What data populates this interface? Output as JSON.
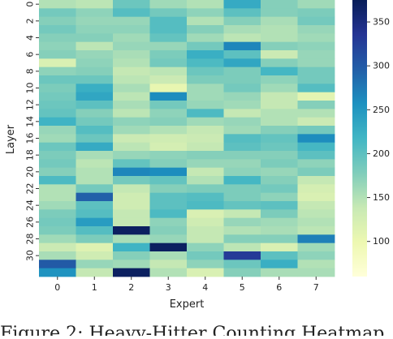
{
  "chart_data": {
    "type": "heatmap",
    "xlabel": "Expert",
    "ylabel": "Layer",
    "x_tick_labels": [
      "0",
      "1",
      "2",
      "3",
      "4",
      "5",
      "6",
      "7"
    ],
    "y_tick_labels": [
      "0",
      "2",
      "4",
      "6",
      "8",
      "10",
      "12",
      "14",
      "16",
      "18",
      "20",
      "22",
      "24",
      "26",
      "28",
      "30"
    ],
    "colorbar": {
      "cmap": "YlGnBu",
      "vmin": 60,
      "vmax": 375,
      "ticks": [
        100,
        150,
        200,
        250,
        300,
        350
      ]
    },
    "values": [
      [
        150,
        145,
        190,
        160,
        150,
        230,
        175,
        160
      ],
      [
        185,
        170,
        205,
        185,
        170,
        200,
        175,
        180
      ],
      [
        175,
        165,
        165,
        205,
        150,
        175,
        155,
        185
      ],
      [
        185,
        170,
        170,
        205,
        175,
        155,
        150,
        165
      ],
      [
        175,
        175,
        160,
        195,
        160,
        145,
        150,
        160
      ],
      [
        170,
        145,
        165,
        165,
        185,
        265,
        175,
        170
      ],
      [
        175,
        165,
        155,
        180,
        225,
        200,
        135,
        165
      ],
      [
        120,
        170,
        150,
        185,
        210,
        235,
        175,
        165
      ],
      [
        170,
        175,
        140,
        145,
        190,
        180,
        215,
        185
      ],
      [
        190,
        190,
        145,
        135,
        180,
        180,
        170,
        185
      ],
      [
        180,
        225,
        155,
        105,
        160,
        185,
        160,
        205
      ],
      [
        185,
        235,
        145,
        260,
        160,
        165,
        140,
        110
      ],
      [
        190,
        200,
        155,
        185,
        165,
        160,
        140,
        175
      ],
      [
        195,
        175,
        145,
        170,
        210,
        140,
        150,
        150
      ],
      [
        220,
        185,
        170,
        175,
        160,
        165,
        150,
        135
      ],
      [
        165,
        205,
        160,
        150,
        140,
        160,
        175,
        185
      ],
      [
        160,
        190,
        135,
        130,
        135,
        205,
        195,
        260
      ],
      [
        190,
        230,
        145,
        125,
        140,
        200,
        190,
        215
      ],
      [
        180,
        155,
        165,
        170,
        175,
        175,
        175,
        200
      ],
      [
        185,
        145,
        195,
        175,
        165,
        165,
        180,
        170
      ],
      [
        175,
        150,
        265,
        260,
        140,
        170,
        165,
        180
      ],
      [
        210,
        150,
        185,
        195,
        150,
        215,
        175,
        140
      ],
      [
        150,
        185,
        140,
        175,
        180,
        180,
        185,
        125
      ],
      [
        150,
        295,
        130,
        200,
        205,
        180,
        170,
        120
      ],
      [
        160,
        200,
        130,
        200,
        210,
        195,
        200,
        140
      ],
      [
        180,
        205,
        140,
        210,
        120,
        140,
        180,
        145
      ],
      [
        185,
        245,
        140,
        170,
        130,
        165,
        160,
        150
      ],
      [
        180,
        205,
        370,
        175,
        140,
        150,
        155,
        145
      ],
      [
        160,
        180,
        155,
        165,
        140,
        175,
        175,
        270
      ],
      [
        135,
        115,
        220,
        370,
        170,
        145,
        120,
        160
      ],
      [
        155,
        130,
        175,
        155,
        185,
        330,
        200,
        170
      ],
      [
        300,
        165,
        160,
        140,
        170,
        190,
        225,
        150
      ],
      [
        255,
        140,
        370,
        150,
        120,
        175,
        155,
        155
      ]
    ]
  },
  "caption_text": "Figure 2: Heavy-Hitter Counting Heatmap"
}
